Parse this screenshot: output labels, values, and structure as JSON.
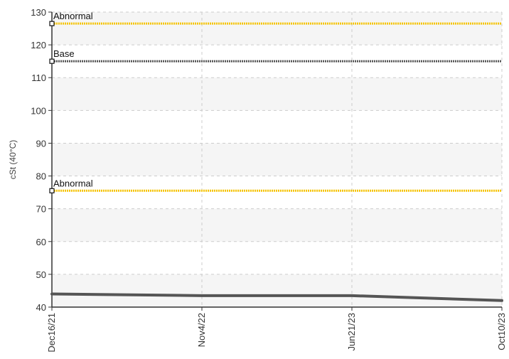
{
  "chart_data": {
    "type": "line",
    "title": "",
    "xlabel": "",
    "ylabel": "cSt (40°C)",
    "ylim": [
      40,
      130
    ],
    "yticks": [
      40,
      50,
      60,
      70,
      80,
      90,
      100,
      110,
      120,
      130
    ],
    "x": [
      "Dec16/21",
      "Nov4/22",
      "Jun21/23",
      "Oct10/23"
    ],
    "grid": true,
    "series": [
      {
        "values": [
          44,
          43.5,
          43.5,
          42
        ],
        "color": "#555555"
      }
    ],
    "reference_lines": [
      {
        "label": "Abnormal",
        "value": 126.5,
        "color": "#f5c400",
        "style": "dotted"
      },
      {
        "label": "Base",
        "value": 115,
        "color": "#555555",
        "style": "dotted"
      },
      {
        "label": "Abnormal",
        "value": 75.5,
        "color": "#f5c400",
        "style": "dotted"
      }
    ],
    "colors": {
      "band": "#f5f5f5",
      "grid": "#cccccc",
      "axis": "#333333"
    }
  }
}
